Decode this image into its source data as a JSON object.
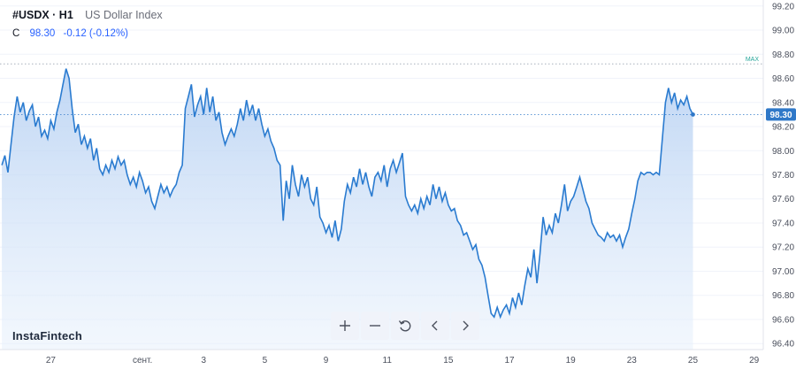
{
  "header": {
    "symbol": "#USDX · H1",
    "description": "US Dollar Index",
    "close_label": "C",
    "close_value": "98.30",
    "change": "-0.12 (-0.12%)"
  },
  "branding": {
    "logo_text": "InstaFintech"
  },
  "toolbar": {
    "buttons": [
      {
        "name": "zoom-in-button",
        "icon": "plus-icon"
      },
      {
        "name": "zoom-out-button",
        "icon": "minus-icon"
      },
      {
        "name": "reset-button",
        "icon": "reset-icon"
      },
      {
        "name": "scroll-left-button",
        "icon": "chevron-left-icon"
      },
      {
        "name": "scroll-right-button",
        "icon": "chevron-right-icon"
      }
    ]
  },
  "colors": {
    "line": "#2a7bd0",
    "area_top": "#b4cff2",
    "price_tag": "#2f78c8",
    "max_label": "#26a69a"
  },
  "chart_data": {
    "type": "area",
    "ylim": [
      96.35,
      99.25
    ],
    "y_ticks": [
      "99.20",
      "99.00",
      "98.80",
      "98.60",
      "98.40",
      "98.20",
      "98.00",
      "97.80",
      "97.60",
      "97.40",
      "97.20",
      "97.00",
      "96.80",
      "96.60",
      "96.40"
    ],
    "x_ticks": [
      {
        "label": "27",
        "pos": 8
      },
      {
        "label": "сент.",
        "pos": 23
      },
      {
        "label": "3",
        "pos": 33
      },
      {
        "label": "5",
        "pos": 43
      },
      {
        "label": "9",
        "pos": 53
      },
      {
        "label": "11",
        "pos": 63
      },
      {
        "label": "15",
        "pos": 73
      },
      {
        "label": "17",
        "pos": 83
      },
      {
        "label": "19",
        "pos": 93
      },
      {
        "label": "23",
        "pos": 103
      },
      {
        "label": "25",
        "pos": 113
      },
      {
        "label": "29",
        "pos": 123
      }
    ],
    "x_range": [
      -0.3,
      124.5
    ],
    "max_label": "MAX",
    "max_value": 98.72,
    "last_price_label": "98.30",
    "last_price": 98.3,
    "points": [
      [
        0,
        97.88
      ],
      [
        0.5,
        97.96
      ],
      [
        1,
        97.82
      ],
      [
        1.5,
        98.05
      ],
      [
        2,
        98.28
      ],
      [
        2.5,
        98.45
      ],
      [
        3,
        98.32
      ],
      [
        3.5,
        98.4
      ],
      [
        4,
        98.25
      ],
      [
        4.5,
        98.33
      ],
      [
        5,
        98.38
      ],
      [
        5.5,
        98.2
      ],
      [
        6,
        98.28
      ],
      [
        6.5,
        98.12
      ],
      [
        7,
        98.17
      ],
      [
        7.5,
        98.1
      ],
      [
        8,
        98.25
      ],
      [
        8.5,
        98.18
      ],
      [
        9,
        98.32
      ],
      [
        9.5,
        98.42
      ],
      [
        10,
        98.55
      ],
      [
        10.5,
        98.68
      ],
      [
        11,
        98.6
      ],
      [
        11.5,
        98.35
      ],
      [
        12,
        98.15
      ],
      [
        12.5,
        98.22
      ],
      [
        13,
        98.05
      ],
      [
        13.5,
        98.12
      ],
      [
        14,
        98.02
      ],
      [
        14.5,
        98.1
      ],
      [
        15,
        97.92
      ],
      [
        15.5,
        98.02
      ],
      [
        16,
        97.85
      ],
      [
        16.5,
        97.8
      ],
      [
        17,
        97.88
      ],
      [
        17.5,
        97.82
      ],
      [
        18,
        97.92
      ],
      [
        18.5,
        97.85
      ],
      [
        19,
        97.95
      ],
      [
        19.5,
        97.88
      ],
      [
        20,
        97.92
      ],
      [
        20.5,
        97.8
      ],
      [
        21,
        97.72
      ],
      [
        21.5,
        97.78
      ],
      [
        22,
        97.7
      ],
      [
        22.5,
        97.82
      ],
      [
        23,
        97.75
      ],
      [
        23.5,
        97.65
      ],
      [
        24,
        97.7
      ],
      [
        24.5,
        97.58
      ],
      [
        25,
        97.52
      ],
      [
        25.5,
        97.62
      ],
      [
        26,
        97.72
      ],
      [
        26.5,
        97.65
      ],
      [
        27,
        97.7
      ],
      [
        27.5,
        97.62
      ],
      [
        28,
        97.68
      ],
      [
        28.5,
        97.72
      ],
      [
        29,
        97.82
      ],
      [
        29.5,
        97.88
      ],
      [
        30,
        98.35
      ],
      [
        30.5,
        98.45
      ],
      [
        31,
        98.55
      ],
      [
        31.5,
        98.28
      ],
      [
        32,
        98.38
      ],
      [
        32.5,
        98.45
      ],
      [
        33,
        98.3
      ],
      [
        33.5,
        98.52
      ],
      [
        34,
        98.32
      ],
      [
        34.5,
        98.45
      ],
      [
        35,
        98.25
      ],
      [
        35.5,
        98.32
      ],
      [
        36,
        98.15
      ],
      [
        36.5,
        98.05
      ],
      [
        37,
        98.12
      ],
      [
        37.5,
        98.18
      ],
      [
        38,
        98.12
      ],
      [
        38.5,
        98.22
      ],
      [
        39,
        98.35
      ],
      [
        39.5,
        98.25
      ],
      [
        40,
        98.42
      ],
      [
        40.5,
        98.3
      ],
      [
        41,
        98.38
      ],
      [
        41.5,
        98.25
      ],
      [
        42,
        98.35
      ],
      [
        42.5,
        98.22
      ],
      [
        43,
        98.12
      ],
      [
        43.5,
        98.18
      ],
      [
        44,
        98.08
      ],
      [
        44.5,
        98.02
      ],
      [
        45,
        97.92
      ],
      [
        45.5,
        97.88
      ],
      [
        46,
        97.42
      ],
      [
        46.5,
        97.75
      ],
      [
        47,
        97.6
      ],
      [
        47.5,
        97.88
      ],
      [
        48,
        97.72
      ],
      [
        48.5,
        97.62
      ],
      [
        49,
        97.8
      ],
      [
        49.5,
        97.7
      ],
      [
        50,
        97.78
      ],
      [
        50.5,
        97.6
      ],
      [
        51,
        97.55
      ],
      [
        51.5,
        97.7
      ],
      [
        52,
        97.45
      ],
      [
        52.5,
        97.4
      ],
      [
        53,
        97.32
      ],
      [
        53.5,
        97.38
      ],
      [
        54,
        97.28
      ],
      [
        54.5,
        97.42
      ],
      [
        55,
        97.25
      ],
      [
        55.5,
        97.35
      ],
      [
        56,
        97.58
      ],
      [
        56.5,
        97.72
      ],
      [
        57,
        97.65
      ],
      [
        57.5,
        97.78
      ],
      [
        58,
        97.7
      ],
      [
        58.5,
        97.85
      ],
      [
        59,
        97.72
      ],
      [
        59.5,
        97.82
      ],
      [
        60,
        97.7
      ],
      [
        60.5,
        97.62
      ],
      [
        61,
        97.78
      ],
      [
        61.5,
        97.82
      ],
      [
        62,
        97.75
      ],
      [
        62.5,
        97.88
      ],
      [
        63,
        97.7
      ],
      [
        63.5,
        97.85
      ],
      [
        64,
        97.92
      ],
      [
        64.5,
        97.82
      ],
      [
        65,
        97.9
      ],
      [
        65.5,
        97.98
      ],
      [
        66,
        97.62
      ],
      [
        66.5,
        97.55
      ],
      [
        67,
        97.5
      ],
      [
        67.5,
        97.55
      ],
      [
        68,
        97.48
      ],
      [
        68.5,
        97.6
      ],
      [
        69,
        97.52
      ],
      [
        69.5,
        97.62
      ],
      [
        70,
        97.55
      ],
      [
        70.5,
        97.72
      ],
      [
        71,
        97.6
      ],
      [
        71.5,
        97.7
      ],
      [
        72,
        97.58
      ],
      [
        72.5,
        97.65
      ],
      [
        73,
        97.55
      ],
      [
        73.5,
        97.5
      ],
      [
        74,
        97.52
      ],
      [
        74.5,
        97.42
      ],
      [
        75,
        97.38
      ],
      [
        75.5,
        97.3
      ],
      [
        76,
        97.32
      ],
      [
        76.5,
        97.25
      ],
      [
        77,
        97.18
      ],
      [
        77.5,
        97.22
      ],
      [
        78,
        97.1
      ],
      [
        78.5,
        97.05
      ],
      [
        79,
        96.95
      ],
      [
        79.5,
        96.8
      ],
      [
        80,
        96.65
      ],
      [
        80.5,
        96.62
      ],
      [
        81,
        96.7
      ],
      [
        81.5,
        96.62
      ],
      [
        82,
        96.68
      ],
      [
        82.5,
        96.72
      ],
      [
        83,
        96.65
      ],
      [
        83.5,
        96.78
      ],
      [
        84,
        96.7
      ],
      [
        84.5,
        96.82
      ],
      [
        85,
        96.72
      ],
      [
        85.5,
        96.88
      ],
      [
        86,
        97.02
      ],
      [
        86.5,
        96.95
      ],
      [
        87,
        97.18
      ],
      [
        87.5,
        96.9
      ],
      [
        88,
        97.15
      ],
      [
        88.5,
        97.45
      ],
      [
        89,
        97.3
      ],
      [
        89.5,
        97.38
      ],
      [
        90,
        97.32
      ],
      [
        90.5,
        97.48
      ],
      [
        91,
        97.4
      ],
      [
        91.5,
        97.55
      ],
      [
        92,
        97.72
      ],
      [
        92.5,
        97.5
      ],
      [
        93,
        97.58
      ],
      [
        93.5,
        97.62
      ],
      [
        94,
        97.7
      ],
      [
        94.5,
        97.78
      ],
      [
        95,
        97.68
      ],
      [
        95.5,
        97.58
      ],
      [
        96,
        97.52
      ],
      [
        96.5,
        97.4
      ],
      [
        97,
        97.35
      ],
      [
        97.5,
        97.3
      ],
      [
        98,
        97.28
      ],
      [
        98.5,
        97.25
      ],
      [
        99,
        97.32
      ],
      [
        99.5,
        97.28
      ],
      [
        100,
        97.3
      ],
      [
        100.5,
        97.25
      ],
      [
        101,
        97.3
      ],
      [
        101.5,
        97.2
      ],
      [
        102,
        97.28
      ],
      [
        102.5,
        97.35
      ],
      [
        103,
        97.48
      ],
      [
        103.5,
        97.6
      ],
      [
        104,
        97.75
      ],
      [
        104.5,
        97.82
      ],
      [
        105,
        97.8
      ],
      [
        105.5,
        97.82
      ],
      [
        106,
        97.82
      ],
      [
        106.5,
        97.8
      ],
      [
        107,
        97.82
      ],
      [
        107.5,
        97.8
      ],
      [
        108,
        98.1
      ],
      [
        108.5,
        98.4
      ],
      [
        109,
        98.52
      ],
      [
        109.5,
        98.4
      ],
      [
        110,
        98.48
      ],
      [
        110.5,
        98.35
      ],
      [
        111,
        98.42
      ],
      [
        111.5,
        98.38
      ],
      [
        112,
        98.45
      ],
      [
        112.5,
        98.35
      ],
      [
        113,
        98.3
      ]
    ]
  }
}
